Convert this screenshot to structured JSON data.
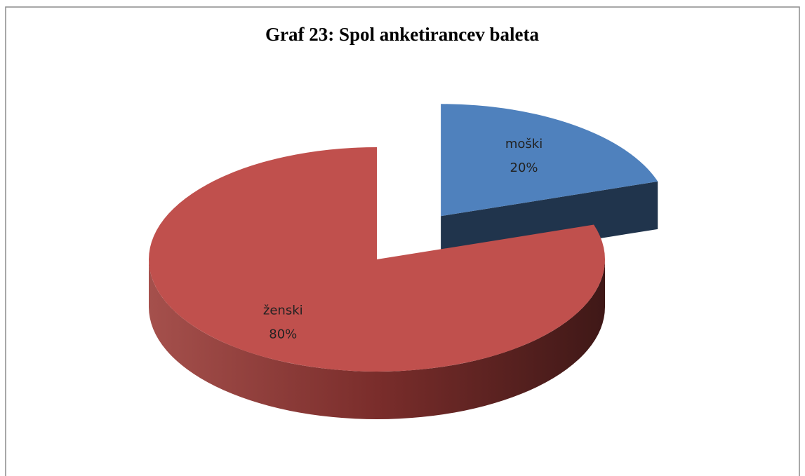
{
  "chart_data": {
    "type": "pie3d",
    "title": "Graf 23: Spol anketirancev baleta",
    "categories": [
      "moški",
      "ženski"
    ],
    "values": [
      20,
      80
    ],
    "value_labels": [
      "20%",
      "80%"
    ],
    "colors": [
      "#4f81bd",
      "#c0504d"
    ]
  }
}
